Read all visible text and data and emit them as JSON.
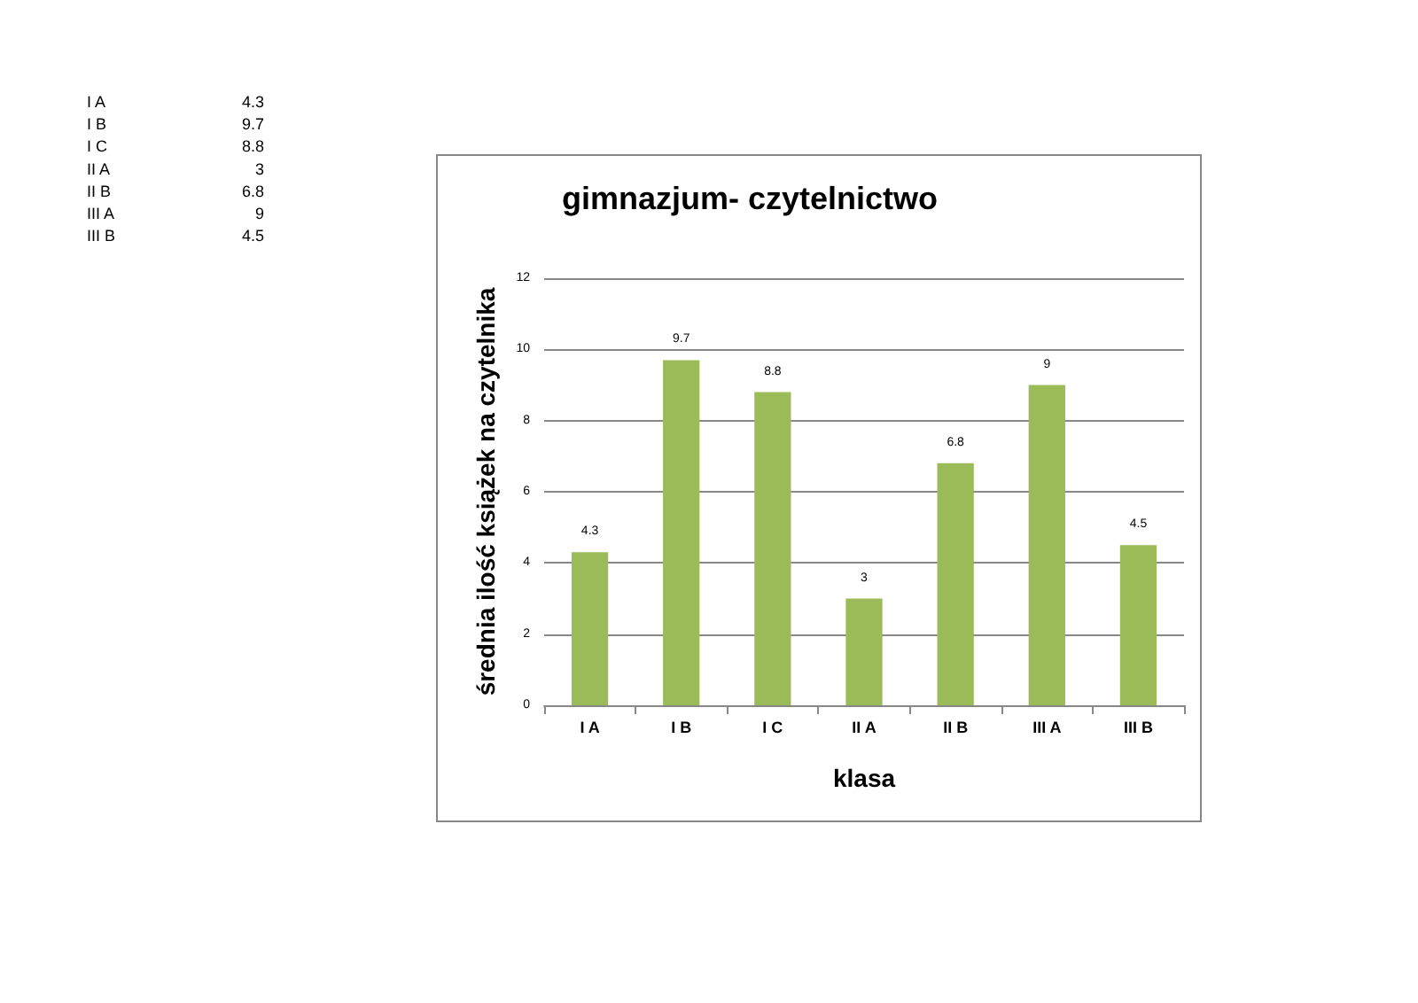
{
  "chart_data": {
    "type": "bar",
    "title": "gimnazjum- czytelnictwo",
    "xlabel": "klasa",
    "ylabel": "średnia ilość książek na czytelnika",
    "categories": [
      "I A",
      "I B",
      "I C",
      "II A",
      "II B",
      "III A",
      "III B"
    ],
    "values": [
      4.3,
      9.7,
      8.8,
      3,
      6.8,
      9,
      4.5
    ],
    "annotations": [
      "4.3",
      "9.7",
      "8.8",
      "3",
      "6.8",
      "9",
      "4.5"
    ],
    "color": "#9bbb59",
    "ylim": [
      0,
      12
    ],
    "yticks": [
      0,
      2,
      4,
      6,
      8,
      10,
      12
    ],
    "grid": "y",
    "data_labels": true
  }
}
